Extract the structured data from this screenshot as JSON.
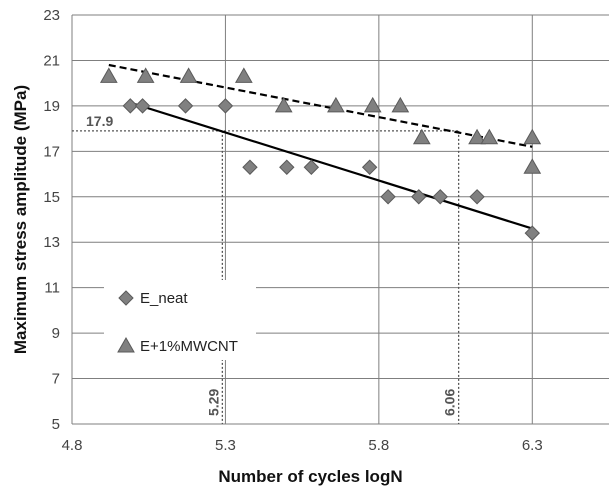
{
  "chart_data": {
    "type": "scatter",
    "title": "",
    "xlabel": "Number of cycles logN",
    "ylabel": "Maximum stress amplitude (MPa)",
    "xlim": [
      4.8,
      6.55
    ],
    "ylim": [
      5,
      23
    ],
    "xticks": [
      4.8,
      5.3,
      5.8,
      6.3
    ],
    "xtick_labels": [
      "4.8",
      "5.3",
      "5.8",
      "6.3"
    ],
    "yticks": [
      5,
      7,
      9,
      11,
      13,
      15,
      17,
      19,
      21,
      23
    ],
    "ytick_labels": [
      "5",
      "7",
      "9",
      "11",
      "13",
      "15",
      "17",
      "19",
      "21",
      "23"
    ],
    "grid": true,
    "legend_position": "left",
    "colors": {
      "marker": "#808080",
      "marker_edge": "#5a5a5a",
      "grid": "#7f7f7f",
      "line": "#000000"
    },
    "series": [
      {
        "name": "E_neat",
        "marker": "diamond",
        "x": [
          4.99,
          5.03,
          5.17,
          5.3,
          5.38,
          5.5,
          5.58,
          5.77,
          5.83,
          5.93,
          6.0,
          6.12,
          6.3
        ],
        "y": [
          19.0,
          19.0,
          19.0,
          19.0,
          16.3,
          16.3,
          16.3,
          16.3,
          15.0,
          15.0,
          15.0,
          15.0,
          13.4
        ],
        "trendline": {
          "style": "solid",
          "x": [
            5.0,
            6.3
          ],
          "y": [
            19.1,
            13.6
          ]
        }
      },
      {
        "name": "E+1%MWCNT",
        "marker": "triangle",
        "x": [
          4.92,
          5.04,
          5.18,
          5.36,
          5.49,
          5.66,
          5.78,
          5.87,
          5.94,
          6.12,
          6.16,
          6.3,
          6.3
        ],
        "y": [
          20.3,
          20.3,
          20.3,
          20.3,
          19.0,
          19.0,
          19.0,
          19.0,
          17.6,
          17.6,
          17.6,
          17.6,
          16.3
        ],
        "trendline": {
          "style": "dashed",
          "x": [
            4.92,
            6.3
          ],
          "y": [
            20.8,
            17.2
          ]
        }
      }
    ],
    "annotations": [
      {
        "label": "17.9",
        "y": 17.9,
        "x_end": 6.06,
        "style": "dotted"
      },
      {
        "label": "5.29",
        "x": 5.29,
        "y_top": 17.9,
        "style": "dotted"
      },
      {
        "label": "6.06",
        "x": 6.06,
        "y_top": 17.9,
        "style": "dotted"
      }
    ]
  }
}
